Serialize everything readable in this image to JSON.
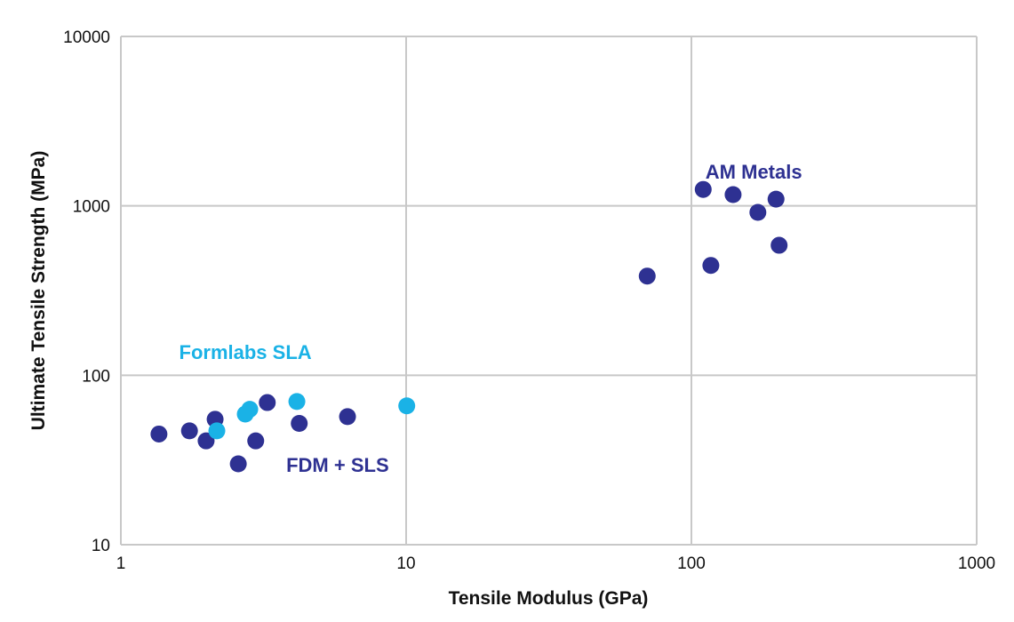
{
  "chart_data": {
    "type": "scatter",
    "title": "",
    "xlabel": "Tensile Modulus (GPa)",
    "ylabel": "Ultimate Tensile Strength (MPa)",
    "xscale": "log",
    "yscale": "log",
    "xlim": [
      1,
      1000
    ],
    "ylim": [
      10,
      10000
    ],
    "xticks": [
      "1",
      "10",
      "100",
      "1000"
    ],
    "yticks": [
      "10",
      "100",
      "1000",
      "10000"
    ],
    "xtick_values": [
      1,
      10,
      100,
      1000
    ],
    "ytick_values": [
      10,
      100,
      1000,
      10000
    ],
    "grid": true,
    "annotations": [
      {
        "text": "AM Metals",
        "color": "#2e3192",
        "x": 112,
        "y": 1450
      },
      {
        "text": "Formlabs SLA",
        "color": "#1ab2e6",
        "x": 1.6,
        "y": 125
      },
      {
        "text": "FDM + SLS",
        "color": "#2e3192",
        "x": 3.8,
        "y": 27
      }
    ],
    "series": [
      {
        "name": "AM Metals",
        "color": "#2e3192",
        "points": [
          {
            "x": 110,
            "y": 1250
          },
          {
            "x": 140,
            "y": 1165
          },
          {
            "x": 198,
            "y": 1095
          },
          {
            "x": 171,
            "y": 915
          },
          {
            "x": 203,
            "y": 585
          },
          {
            "x": 117,
            "y": 445
          },
          {
            "x": 70,
            "y": 385
          }
        ]
      },
      {
        "name": "FDM + SLS",
        "color": "#2e3192",
        "points": [
          {
            "x": 1.36,
            "y": 45
          },
          {
            "x": 1.74,
            "y": 47
          },
          {
            "x": 1.99,
            "y": 41
          },
          {
            "x": 2.14,
            "y": 55
          },
          {
            "x": 2.58,
            "y": 30
          },
          {
            "x": 2.97,
            "y": 41
          },
          {
            "x": 3.26,
            "y": 69
          },
          {
            "x": 4.22,
            "y": 52
          },
          {
            "x": 6.23,
            "y": 57
          }
        ]
      },
      {
        "name": "Formlabs SLA",
        "color": "#1ab2e6",
        "points": [
          {
            "x": 2.17,
            "y": 47
          },
          {
            "x": 2.73,
            "y": 59
          },
          {
            "x": 2.83,
            "y": 63
          },
          {
            "x": 4.14,
            "y": 70
          },
          {
            "x": 10.05,
            "y": 66
          }
        ]
      }
    ]
  },
  "colors": {
    "grid": "#c8c8c8",
    "dark_series": "#2e3192",
    "light_series": "#1ab2e6"
  }
}
